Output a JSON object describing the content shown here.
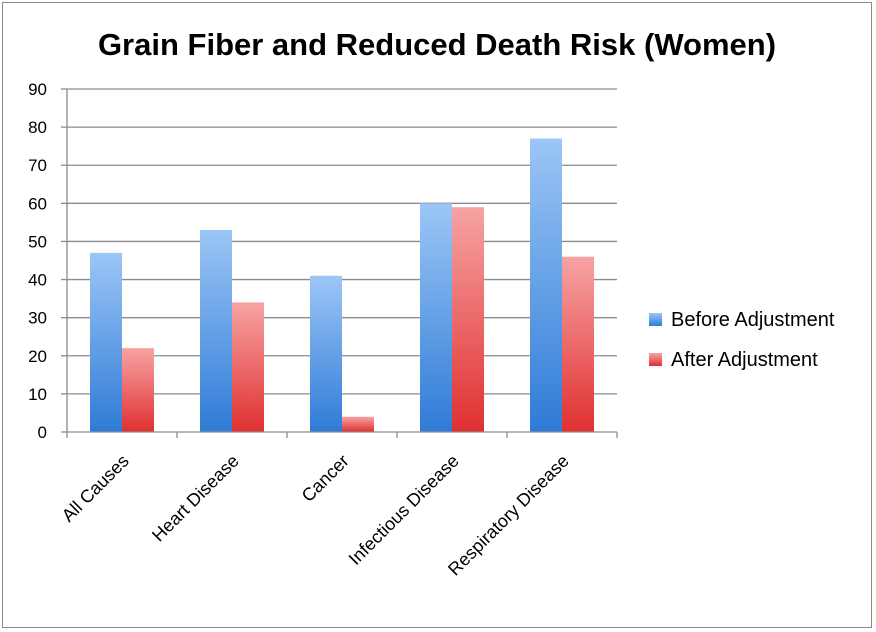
{
  "chart_data": {
    "type": "bar",
    "title": "Grain Fiber and Reduced Death Risk (Women)",
    "xlabel": "",
    "ylabel": "",
    "ylim": [
      0,
      90
    ],
    "yticks": [
      0,
      10,
      20,
      30,
      40,
      50,
      60,
      70,
      80,
      90
    ],
    "categories": [
      "All Causes",
      "Heart Disease",
      "Cancer",
      "Infectious Disease",
      "Respiratory Disease"
    ],
    "series": [
      {
        "name": "Before Adjustment",
        "values": [
          47,
          53,
          41,
          60,
          77
        ],
        "color": "#3a82d8"
      },
      {
        "name": "After Adjustment",
        "values": [
          22,
          34,
          4,
          59,
          46
        ],
        "color": "#e03a3a"
      }
    ],
    "grid": true,
    "legend_position": "right"
  }
}
